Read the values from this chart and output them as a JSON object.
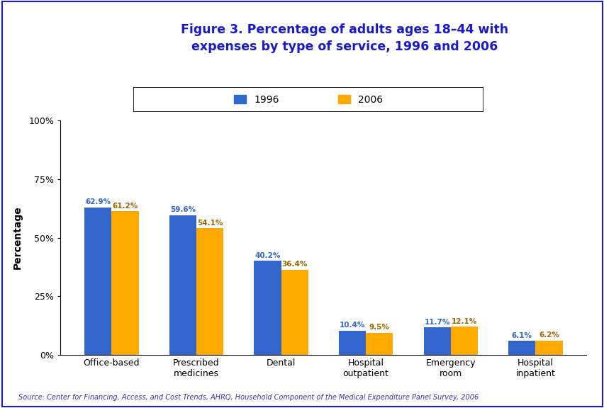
{
  "title": "Figure 3. Percentage of adults ages 18–44 with\nexpenses by type of service, 1996 and 2006",
  "categories": [
    "Office-based",
    "Prescribed\nmedicines",
    "Dental",
    "Hospital\noutpatient",
    "Emergency\nroom",
    "Hospital\ninpatient"
  ],
  "values_1996": [
    62.9,
    59.6,
    40.2,
    10.4,
    11.7,
    6.1
  ],
  "values_2006": [
    61.2,
    54.1,
    36.4,
    9.5,
    12.1,
    6.2
  ],
  "labels_1996": [
    "62.9%",
    "59.6%",
    "40.2%",
    "10.4%",
    "11.7%",
    "6.1%"
  ],
  "labels_2006": [
    "61.2%",
    "54.1%",
    "36.4%",
    "9.5%",
    "12.1%",
    "6.2%"
  ],
  "color_1996": "#3366CC",
  "color_2006": "#FFAA00",
  "ylabel": "Percentage",
  "ylim": [
    0,
    100
  ],
  "yticks": [
    0,
    25,
    50,
    75,
    100
  ],
  "ytick_labels": [
    "0%",
    "25%",
    "50%",
    "75%",
    "100%"
  ],
  "legend_labels": [
    "1996",
    "2006"
  ],
  "source_text": "Source: Center for Financing, Access, and Cost Trends, AHRQ, Household Component of the Medical Expenditure Panel Survey, 2006",
  "bg_color": "#FFFFFF",
  "bar_width": 0.32,
  "title_color": "#1a1acc",
  "border_color": "#1a1acc",
  "thick_line_color": "#1a1acc",
  "label_color_1996": "#3366CC",
  "label_color_2006": "#996600",
  "source_color": "#3333AA"
}
